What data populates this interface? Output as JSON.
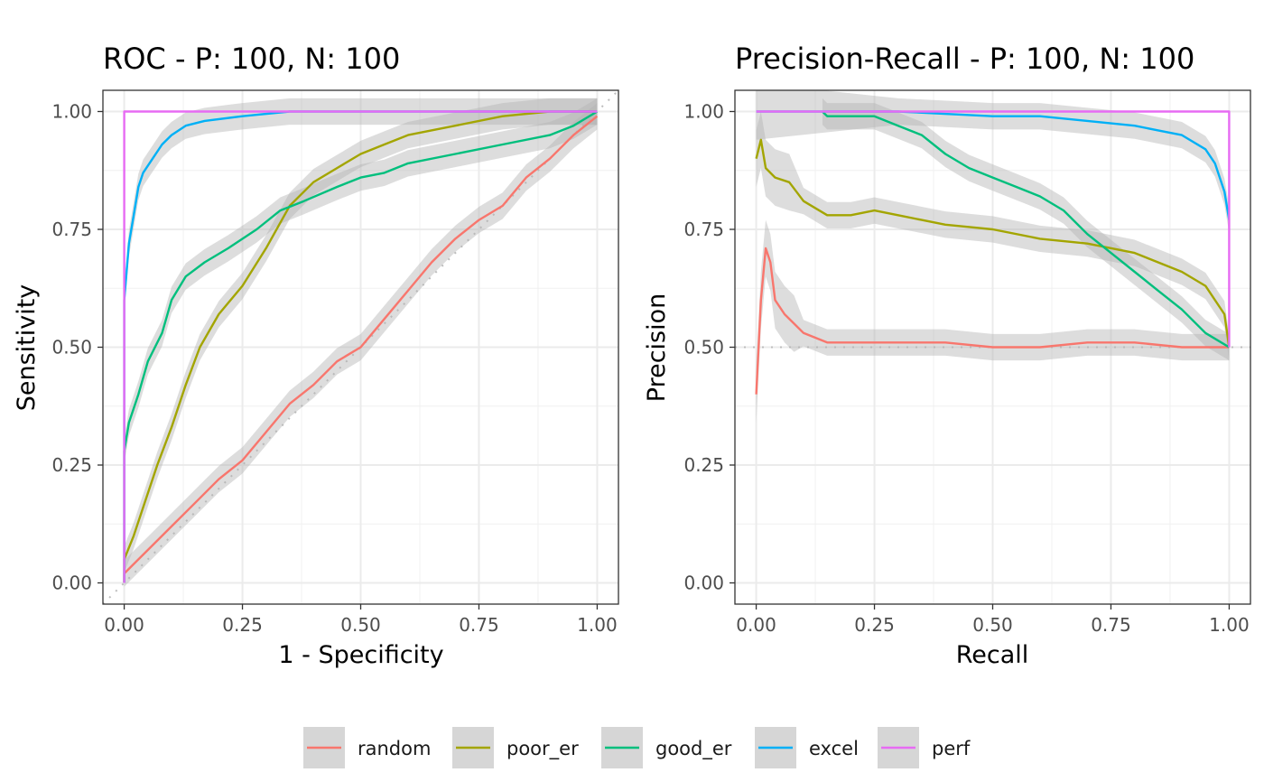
{
  "chart_data": [
    {
      "type": "line",
      "title": "ROC - P: 100, N: 100",
      "xlabel": "1 - Specificity",
      "ylabel": "Sensitivity",
      "xlim": [
        0,
        1
      ],
      "ylim": [
        0,
        1
      ],
      "x_ticks": [
        "0.00",
        "0.25",
        "0.50",
        "0.75",
        "1.00"
      ],
      "y_ticks": [
        "0.00",
        "0.25",
        "0.50",
        "0.75",
        "1.00"
      ],
      "grid": true,
      "baseline": {
        "type": "diagonal",
        "style": "dotted"
      },
      "confidence_band": true,
      "series": [
        {
          "name": "random",
          "color": "#F8766D",
          "points": [
            [
              0,
              0
            ],
            [
              0,
              0.02
            ],
            [
              0.02,
              0.04
            ],
            [
              0.05,
              0.07
            ],
            [
              0.1,
              0.12
            ],
            [
              0.15,
              0.17
            ],
            [
              0.2,
              0.22
            ],
            [
              0.25,
              0.26
            ],
            [
              0.3,
              0.32
            ],
            [
              0.35,
              0.38
            ],
            [
              0.4,
              0.42
            ],
            [
              0.45,
              0.47
            ],
            [
              0.5,
              0.5
            ],
            [
              0.55,
              0.56
            ],
            [
              0.6,
              0.62
            ],
            [
              0.65,
              0.68
            ],
            [
              0.7,
              0.73
            ],
            [
              0.75,
              0.77
            ],
            [
              0.8,
              0.8
            ],
            [
              0.85,
              0.86
            ],
            [
              0.9,
              0.9
            ],
            [
              0.95,
              0.95
            ],
            [
              1,
              0.99
            ]
          ]
        },
        {
          "name": "poor_er",
          "color": "#A3A500",
          "points": [
            [
              0,
              0
            ],
            [
              0,
              0.05
            ],
            [
              0.02,
              0.1
            ],
            [
              0.04,
              0.16
            ],
            [
              0.07,
              0.25
            ],
            [
              0.1,
              0.33
            ],
            [
              0.13,
              0.42
            ],
            [
              0.16,
              0.5
            ],
            [
              0.2,
              0.57
            ],
            [
              0.25,
              0.63
            ],
            [
              0.3,
              0.71
            ],
            [
              0.35,
              0.8
            ],
            [
              0.4,
              0.85
            ],
            [
              0.45,
              0.88
            ],
            [
              0.5,
              0.91
            ],
            [
              0.55,
              0.93
            ],
            [
              0.6,
              0.95
            ],
            [
              0.7,
              0.97
            ],
            [
              0.8,
              0.99
            ],
            [
              0.9,
              1
            ],
            [
              1,
              1
            ]
          ]
        },
        {
          "name": "good_er",
          "color": "#00BF7D",
          "points": [
            [
              0,
              0
            ],
            [
              0,
              0.28
            ],
            [
              0.01,
              0.34
            ],
            [
              0.03,
              0.4
            ],
            [
              0.05,
              0.47
            ],
            [
              0.08,
              0.53
            ],
            [
              0.1,
              0.6
            ],
            [
              0.13,
              0.65
            ],
            [
              0.17,
              0.68
            ],
            [
              0.22,
              0.71
            ],
            [
              0.28,
              0.75
            ],
            [
              0.33,
              0.79
            ],
            [
              0.38,
              0.81
            ],
            [
              0.45,
              0.84
            ],
            [
              0.5,
              0.86
            ],
            [
              0.55,
              0.87
            ],
            [
              0.6,
              0.89
            ],
            [
              0.7,
              0.91
            ],
            [
              0.8,
              0.93
            ],
            [
              0.9,
              0.95
            ],
            [
              0.95,
              0.97
            ],
            [
              1,
              1
            ]
          ]
        },
        {
          "name": "excel",
          "color": "#00B0F6",
          "points": [
            [
              0,
              0
            ],
            [
              0,
              0.6
            ],
            [
              0.01,
              0.72
            ],
            [
              0.02,
              0.78
            ],
            [
              0.03,
              0.84
            ],
            [
              0.04,
              0.87
            ],
            [
              0.06,
              0.9
            ],
            [
              0.08,
              0.93
            ],
            [
              0.1,
              0.95
            ],
            [
              0.13,
              0.97
            ],
            [
              0.17,
              0.98
            ],
            [
              0.25,
              0.99
            ],
            [
              0.35,
              1
            ],
            [
              1,
              1
            ]
          ]
        },
        {
          "name": "perf",
          "color": "#E76BF3",
          "points": [
            [
              0,
              0
            ],
            [
              0,
              1
            ],
            [
              1,
              1
            ]
          ]
        }
      ]
    },
    {
      "type": "line",
      "title": "Precision-Recall - P: 100, N: 100",
      "xlabel": "Recall",
      "ylabel": "Precision",
      "xlim": [
        0,
        1
      ],
      "ylim": [
        0,
        1
      ],
      "x_ticks": [
        "0.00",
        "0.25",
        "0.50",
        "0.75",
        "1.00"
      ],
      "y_ticks": [
        "0.00",
        "0.25",
        "0.50",
        "0.75",
        "1.00"
      ],
      "grid": true,
      "baseline": {
        "type": "horizontal",
        "value": 0.5,
        "style": "dotted"
      },
      "confidence_band": true,
      "series": [
        {
          "name": "random",
          "color": "#F8766D",
          "points": [
            [
              0,
              0.4
            ],
            [
              0.01,
              0.6
            ],
            [
              0.02,
              0.71
            ],
            [
              0.03,
              0.68
            ],
            [
              0.04,
              0.6
            ],
            [
              0.06,
              0.57
            ],
            [
              0.08,
              0.55
            ],
            [
              0.1,
              0.53
            ],
            [
              0.15,
              0.51
            ],
            [
              0.2,
              0.51
            ],
            [
              0.3,
              0.51
            ],
            [
              0.4,
              0.51
            ],
            [
              0.5,
              0.5
            ],
            [
              0.6,
              0.5
            ],
            [
              0.7,
              0.51
            ],
            [
              0.8,
              0.51
            ],
            [
              0.9,
              0.5
            ],
            [
              1,
              0.5
            ]
          ]
        },
        {
          "name": "poor_er",
          "color": "#A3A500",
          "points": [
            [
              0,
              0.9
            ],
            [
              0.01,
              0.94
            ],
            [
              0.02,
              0.88
            ],
            [
              0.04,
              0.86
            ],
            [
              0.07,
              0.85
            ],
            [
              0.1,
              0.81
            ],
            [
              0.15,
              0.78
            ],
            [
              0.2,
              0.78
            ],
            [
              0.25,
              0.79
            ],
            [
              0.3,
              0.78
            ],
            [
              0.35,
              0.77
            ],
            [
              0.4,
              0.76
            ],
            [
              0.5,
              0.75
            ],
            [
              0.6,
              0.73
            ],
            [
              0.7,
              0.72
            ],
            [
              0.8,
              0.7
            ],
            [
              0.9,
              0.66
            ],
            [
              0.95,
              0.63
            ],
            [
              0.99,
              0.57
            ],
            [
              1,
              0.5
            ]
          ]
        },
        {
          "name": "good_er",
          "color": "#00BF7D",
          "points": [
            [
              0.14,
              1
            ],
            [
              0.15,
              0.99
            ],
            [
              0.2,
              0.99
            ],
            [
              0.25,
              0.99
            ],
            [
              0.3,
              0.97
            ],
            [
              0.35,
              0.95
            ],
            [
              0.4,
              0.91
            ],
            [
              0.45,
              0.88
            ],
            [
              0.5,
              0.86
            ],
            [
              0.55,
              0.84
            ],
            [
              0.6,
              0.82
            ],
            [
              0.65,
              0.79
            ],
            [
              0.7,
              0.74
            ],
            [
              0.75,
              0.7
            ],
            [
              0.8,
              0.66
            ],
            [
              0.85,
              0.62
            ],
            [
              0.9,
              0.58
            ],
            [
              0.95,
              0.53
            ],
            [
              1,
              0.5
            ]
          ]
        },
        {
          "name": "excel",
          "color": "#00B0F6",
          "points": [
            [
              0,
              1
            ],
            [
              0.3,
              1
            ],
            [
              0.5,
              0.99
            ],
            [
              0.6,
              0.99
            ],
            [
              0.7,
              0.98
            ],
            [
              0.8,
              0.97
            ],
            [
              0.85,
              0.96
            ],
            [
              0.9,
              0.95
            ],
            [
              0.95,
              0.92
            ],
            [
              0.97,
              0.89
            ],
            [
              0.99,
              0.83
            ],
            [
              1,
              0.77
            ]
          ]
        },
        {
          "name": "perf",
          "color": "#E76BF3",
          "points": [
            [
              0,
              1
            ],
            [
              1,
              1
            ],
            [
              1,
              0.5
            ]
          ]
        }
      ]
    }
  ],
  "legend": {
    "position": "bottom",
    "items": [
      {
        "label": "random",
        "color": "#F8766D"
      },
      {
        "label": "poor_er",
        "color": "#A3A500"
      },
      {
        "label": "good_er",
        "color": "#00BF7D"
      },
      {
        "label": "excel",
        "color": "#00B0F6"
      },
      {
        "label": "perf",
        "color": "#E76BF3"
      }
    ]
  }
}
